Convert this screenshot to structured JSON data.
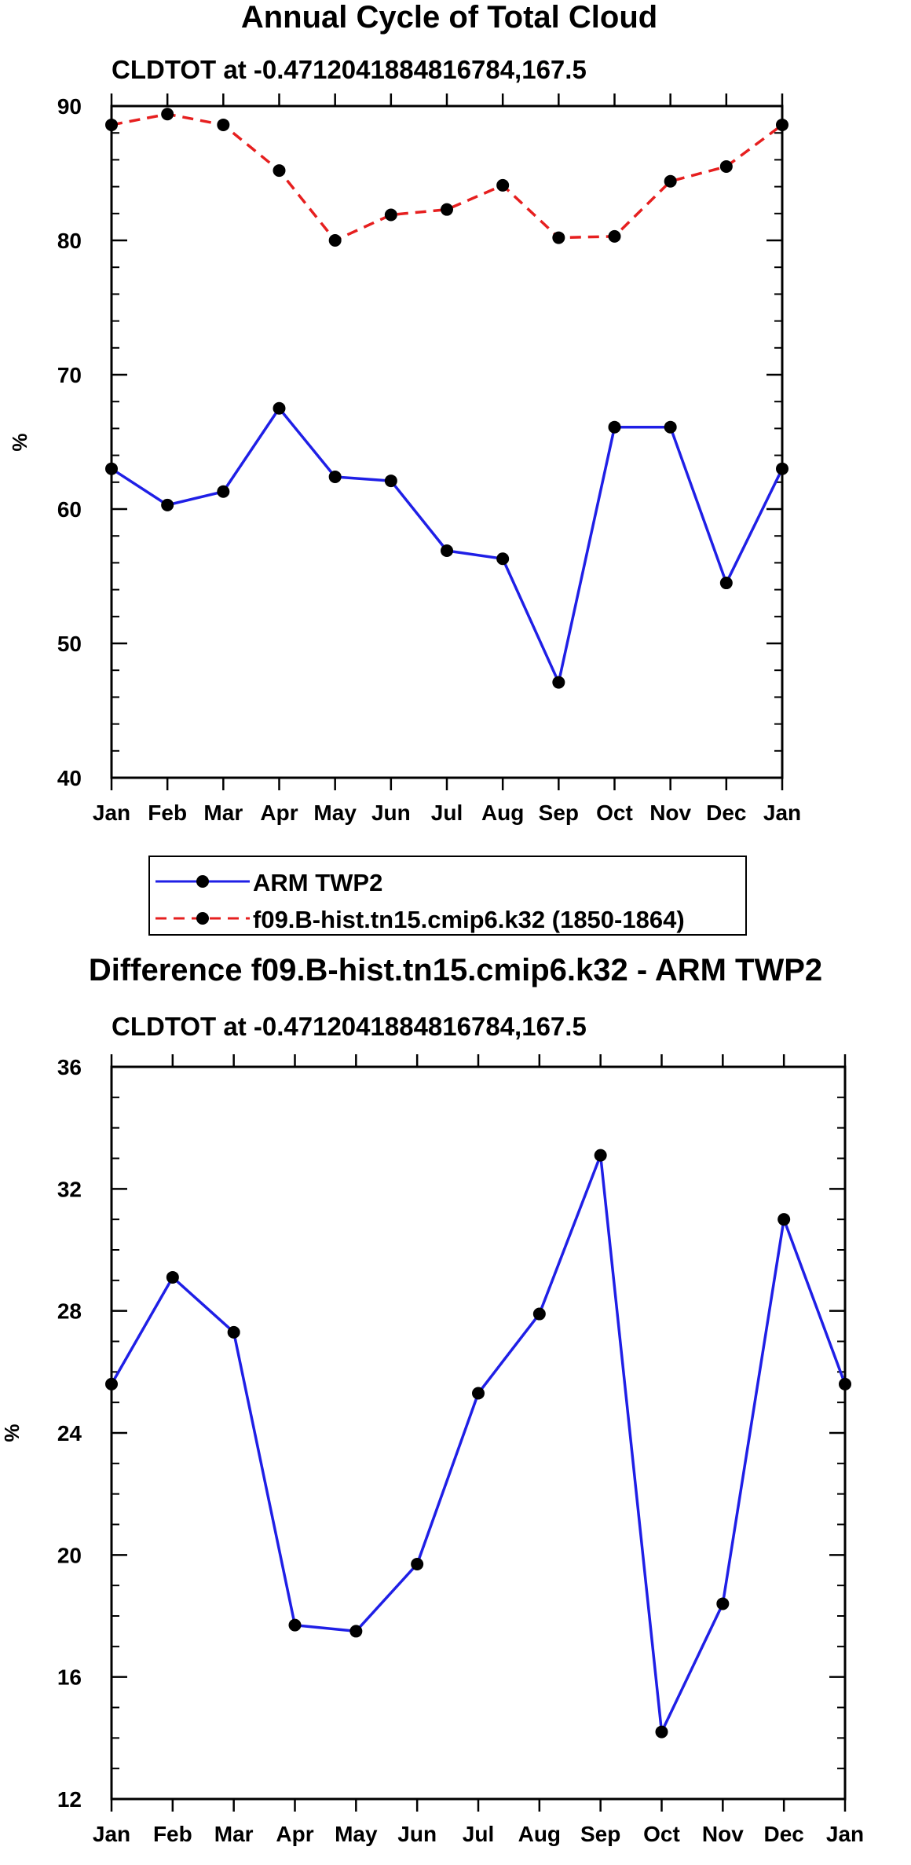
{
  "chart_data": [
    {
      "type": "line",
      "title": "Annual Cycle of Total Cloud",
      "subtitle": "CLDTOT at -0.4712041884816784,167.5",
      "xlabel": "",
      "ylabel": "%",
      "categories": [
        "Jan",
        "Feb",
        "Mar",
        "Apr",
        "May",
        "Jun",
        "Jul",
        "Aug",
        "Sep",
        "Oct",
        "Nov",
        "Dec",
        "Jan"
      ],
      "ylim": [
        40,
        90
      ],
      "yticks": [
        40,
        50,
        60,
        70,
        80,
        90
      ],
      "series": [
        {
          "name": "ARM TWP2",
          "color": "#1f1fe6",
          "dash": "solid",
          "values": [
            63.0,
            60.3,
            61.3,
            67.5,
            62.4,
            62.1,
            56.9,
            56.3,
            47.1,
            66.1,
            66.1,
            54.5,
            63.0
          ]
        },
        {
          "name": "f09.B-hist.tn15.cmip6.k32 (1850-1864)",
          "color": "#e61f1f",
          "dash": "dashed",
          "values": [
            88.6,
            89.4,
            88.6,
            85.2,
            80.0,
            81.9,
            82.3,
            84.1,
            80.2,
            80.3,
            84.4,
            85.5,
            88.6
          ]
        }
      ],
      "legend": "bottom"
    },
    {
      "type": "line",
      "title": "Difference f09.B-hist.tn15.cmip6.k32 - ARM TWP2",
      "subtitle": "CLDTOT at -0.4712041884816784,167.5",
      "xlabel": "",
      "ylabel": "%",
      "categories": [
        "Jan",
        "Feb",
        "Mar",
        "Apr",
        "May",
        "Jun",
        "Jul",
        "Aug",
        "Sep",
        "Oct",
        "Nov",
        "Dec",
        "Jan"
      ],
      "ylim": [
        12,
        36
      ],
      "yticks": [
        12,
        16,
        20,
        24,
        28,
        32,
        36
      ],
      "series": [
        {
          "name": "Difference",
          "color": "#1f1fe6",
          "dash": "solid",
          "values": [
            25.6,
            29.1,
            27.3,
            17.7,
            17.5,
            19.7,
            25.3,
            27.9,
            33.1,
            14.2,
            18.4,
            31.0,
            25.6
          ]
        }
      ]
    }
  ]
}
